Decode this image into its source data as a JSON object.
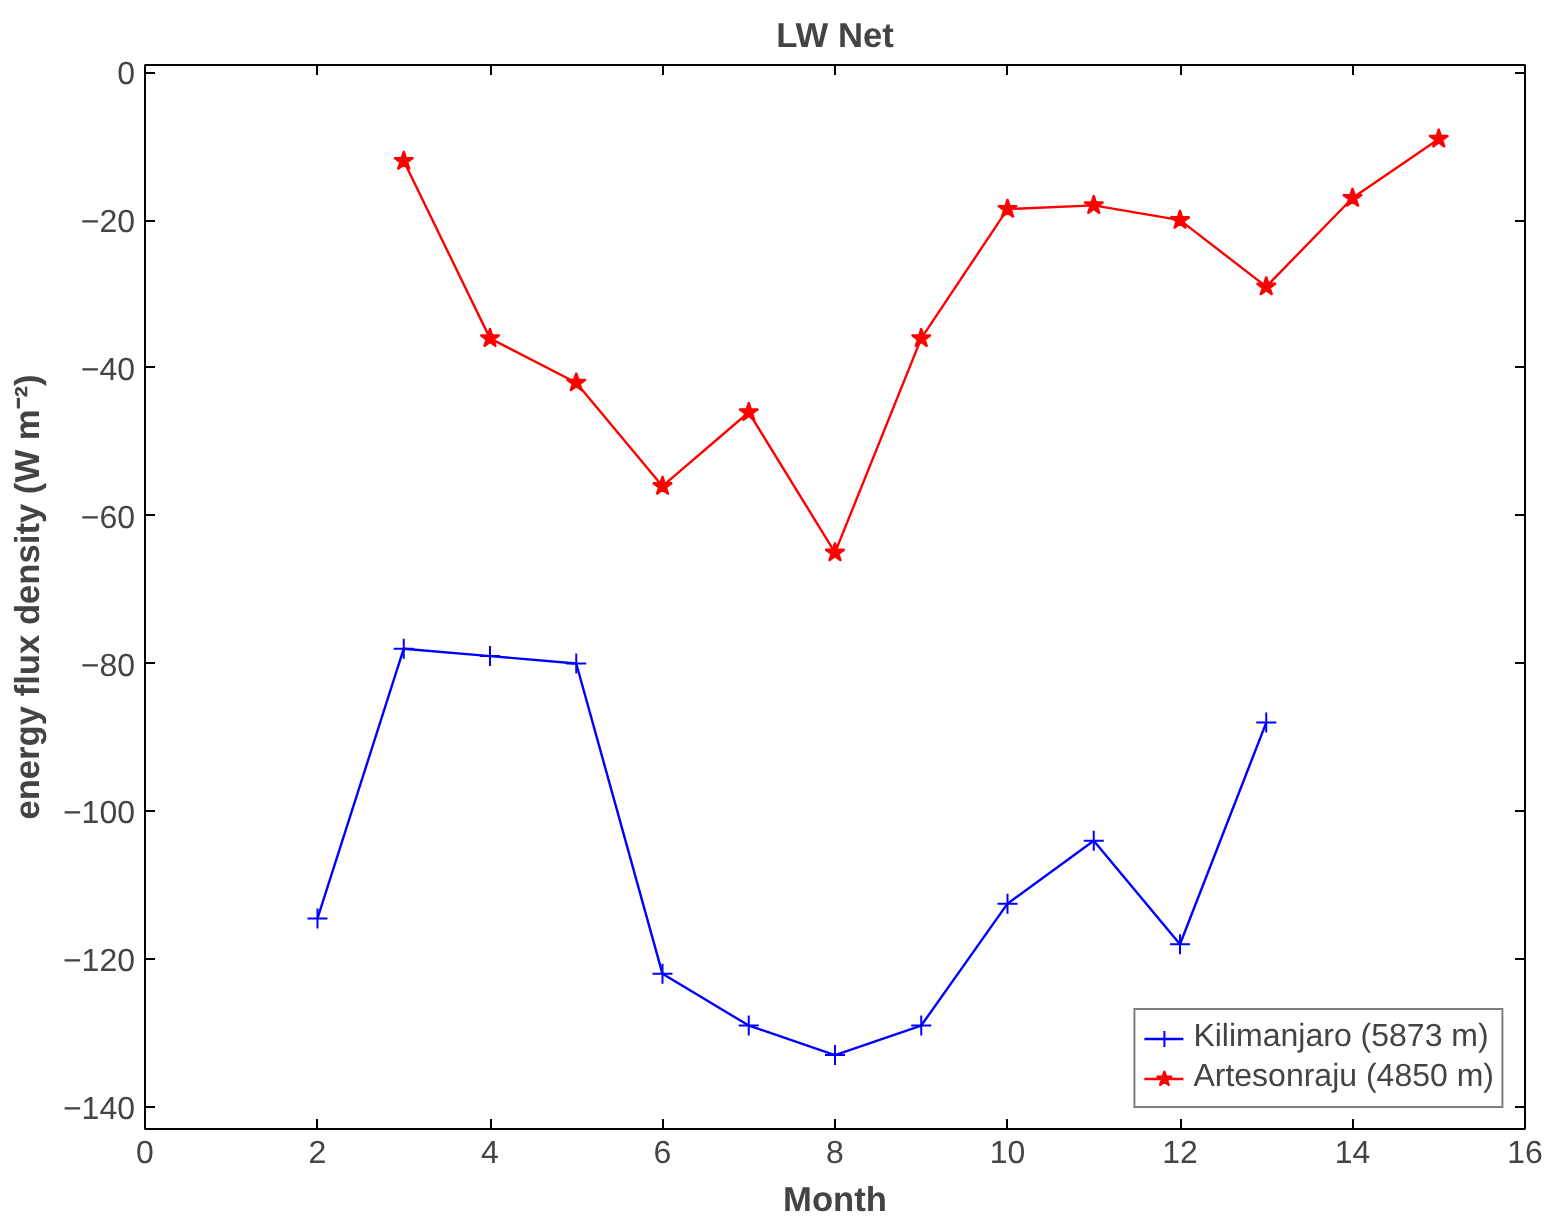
{
  "chart_data": {
    "type": "line",
    "title": "LW Net",
    "xlabel": "Month",
    "ylabel": "energy flux density (W m⁻²)",
    "xlim": [
      0,
      16
    ],
    "xticks": [
      0,
      2,
      4,
      6,
      8,
      10,
      12,
      14,
      16
    ],
    "ylim": [
      -143,
      1
    ],
    "yticks": [
      -140,
      -120,
      -100,
      -80,
      -60,
      -40,
      -20,
      0
    ],
    "grid": false,
    "legend": "bottom right",
    "line_style": "solid",
    "series": [
      {
        "name": "Kilimanjaro (5873 m)",
        "color": "#0000ff",
        "marker": "cross",
        "x": [
          2,
          3,
          4,
          5,
          6,
          7,
          8,
          9,
          10,
          11,
          12,
          13
        ],
        "values": [
          -114.5,
          -78,
          -79,
          -80,
          -122,
          -129,
          -133,
          -129,
          -112.5,
          -104,
          -118,
          -88
        ]
      },
      {
        "name": "Artesonraju (4850 m)",
        "color": "#ff0000",
        "marker": "star",
        "x": [
          3,
          4,
          5,
          6,
          7,
          8,
          9,
          10,
          11,
          12,
          13,
          14,
          15
        ],
        "values": [
          -12,
          -36,
          -42,
          -56,
          -46,
          -65,
          -36,
          -18.5,
          -18,
          -20,
          -29,
          -17,
          -9
        ]
      }
    ]
  }
}
